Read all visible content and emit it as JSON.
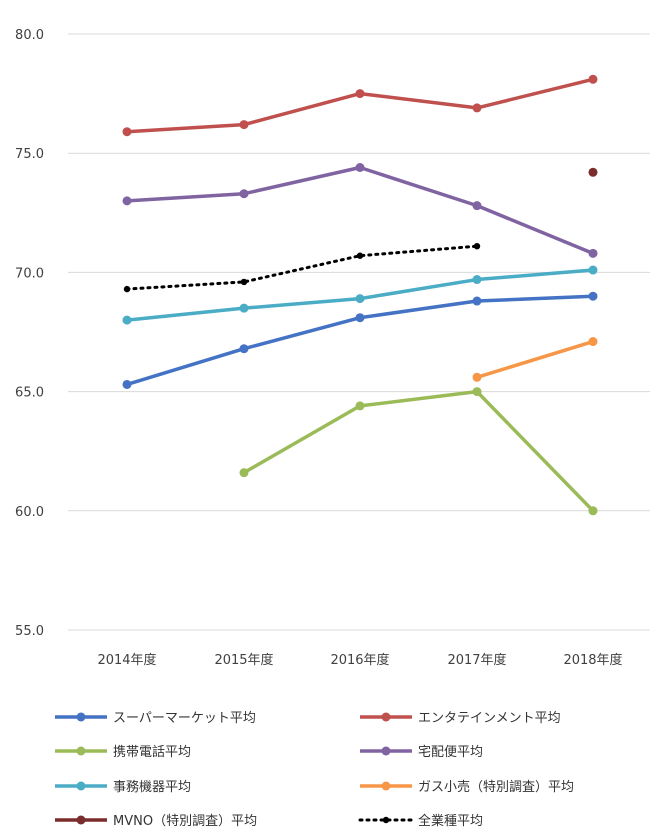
{
  "chart_data": {
    "type": "line",
    "title": "",
    "xlabel": "",
    "ylabel": "",
    "categories": [
      "2014年度",
      "2015年度",
      "2016年度",
      "2017年度",
      "2018年度"
    ],
    "ylim": [
      55.0,
      80.0
    ],
    "yticks": [
      "55.0",
      "60.0",
      "65.0",
      "70.0",
      "75.0",
      "80.0"
    ],
    "grid": true,
    "legend_position": "bottom",
    "series": [
      {
        "name": "スーパーマーケット平均",
        "color": "#4472c4",
        "style": "solid",
        "values": [
          65.3,
          66.8,
          68.1,
          68.8,
          69.0
        ]
      },
      {
        "name": "エンタテインメント平均",
        "color": "#c0504d",
        "style": "solid",
        "values": [
          75.9,
          76.2,
          77.5,
          76.9,
          78.1
        ]
      },
      {
        "name": "携帯電話平均",
        "color": "#9bbb59",
        "style": "solid",
        "values": [
          null,
          61.6,
          64.4,
          65.0,
          60.0
        ]
      },
      {
        "name": "宅配便平均",
        "color": "#8064a2",
        "style": "solid",
        "values": [
          73.0,
          73.3,
          74.4,
          72.8,
          70.8
        ]
      },
      {
        "name": "事務機器平均",
        "color": "#4bacc6",
        "style": "solid",
        "values": [
          68.0,
          68.5,
          68.9,
          69.7,
          70.1
        ]
      },
      {
        "name": "ガス小売（特別調査）平均",
        "color": "#f79646",
        "style": "solid",
        "values": [
          null,
          null,
          null,
          65.6,
          67.1
        ]
      },
      {
        "name": "MVNO（特別調査）平均",
        "color": "#7b2c2c",
        "style": "solid",
        "values": [
          null,
          null,
          null,
          null,
          74.2
        ]
      },
      {
        "name": "全業種平均",
        "color": "#000000",
        "style": "dotted",
        "values": [
          69.3,
          69.6,
          70.7,
          71.1,
          null
        ]
      }
    ]
  }
}
